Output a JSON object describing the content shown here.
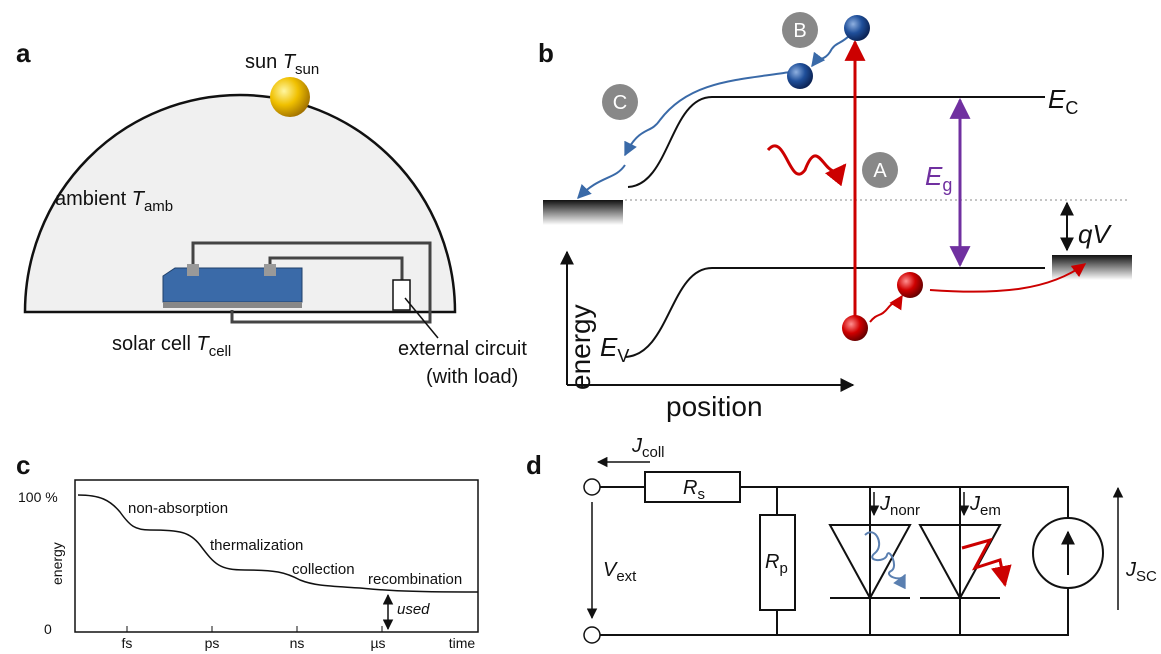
{
  "panel_a": {
    "label": "a",
    "sun": {
      "text": "sun ",
      "symbol": "T",
      "sub": "sun"
    },
    "ambient": {
      "text": "ambient ",
      "symbol": "T",
      "sub": "amb"
    },
    "cell": {
      "text": "solar cell ",
      "symbol": "T",
      "sub": "cell"
    },
    "circuit": [
      "external circuit",
      "(with load)"
    ]
  },
  "panel_b": {
    "label": "b",
    "markers": [
      "A",
      "B",
      "C"
    ],
    "conduction": {
      "symbol": "E",
      "sub": "C"
    },
    "gap": {
      "symbol": "E",
      "sub": "g"
    },
    "voltage": "qV",
    "valence": {
      "symbol": "E",
      "sub": "V"
    },
    "y_axis": "energy",
    "x_axis": "position"
  },
  "panel_c": {
    "label": "c",
    "y_ticks": [
      "100 %",
      "0"
    ],
    "y_axis": "energy",
    "x_ticks": [
      "fs",
      "ps",
      "ns",
      "µs"
    ],
    "x_axis": "time",
    "stages": [
      "non-absorption",
      "thermalization",
      "collection",
      "recombination"
    ],
    "used": "used"
  },
  "panel_d": {
    "label": "d",
    "j_coll": {
      "symbol": "J",
      "sub": "coll"
    },
    "r_s": {
      "symbol": "R",
      "sub": "s"
    },
    "r_p": {
      "symbol": "R",
      "sub": "p"
    },
    "j_nonr": {
      "symbol": "J",
      "sub": "nonr"
    },
    "j_em": {
      "symbol": "J",
      "sub": "em"
    },
    "v_ext": {
      "symbol": "V",
      "sub": "ext"
    },
    "j_sc": {
      "symbol": "J",
      "sub": "SC"
    }
  }
}
